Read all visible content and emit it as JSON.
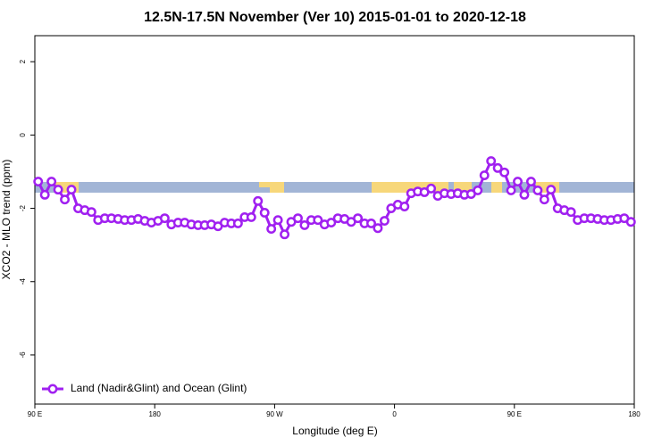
{
  "chart_data": {
    "type": "line",
    "title": "12.5N-17.5N November (Ver 10)   2015-01-01 to 2020-12-18",
    "x_label": "Longitude (deg E)",
    "y_label": "XCO2 - MLO trend (ppm)",
    "x": [
      92.5,
      97.5,
      102.5,
      107.5,
      112.5,
      117.5,
      122.5,
      127.5,
      132.5,
      137.5,
      142.5,
      147.5,
      152.5,
      157.5,
      162.5,
      167.5,
      172.5,
      177.5,
      182.5,
      187.5,
      192.5,
      197.5,
      202.5,
      207.5,
      212.5,
      217.5,
      222.5,
      227.5,
      232.5,
      237.5,
      242.5,
      247.5,
      252.5,
      257.5,
      262.5,
      267.5,
      272.5,
      277.5,
      282.5,
      287.5,
      292.5,
      297.5,
      302.5,
      307.5,
      312.5,
      317.5,
      322.5,
      327.5,
      332.5,
      337.5,
      342.5,
      347.5,
      352.5,
      357.5,
      362.5,
      367.5,
      372.5,
      377.5,
      382.5,
      387.5,
      392.5,
      397.5,
      402.5,
      407.5,
      412.5,
      417.5,
      422.5,
      427.5,
      432.5,
      437.5,
      442.5,
      447.5,
      452.5,
      457.5,
      462.5,
      467.5,
      472.5,
      477.5,
      482.5,
      487.5,
      492.5,
      497.5,
      502.5,
      507.5,
      512.5,
      517.5,
      522.5,
      527.5,
      532.5,
      537.5
    ],
    "series": [
      {
        "name": "Land (Nadir&Glint) and Ocean (Glint)",
        "color": "#a020f0",
        "values": [
          -1.27,
          -1.63,
          -1.27,
          -1.49,
          -1.76,
          -1.49,
          -2.0,
          -2.05,
          -2.1,
          -2.32,
          -2.27,
          -2.27,
          -2.29,
          -2.32,
          -2.32,
          -2.29,
          -2.34,
          -2.39,
          -2.34,
          -2.27,
          -2.44,
          -2.39,
          -2.39,
          -2.44,
          -2.46,
          -2.46,
          -2.44,
          -2.49,
          -2.39,
          -2.41,
          -2.41,
          -2.24,
          -2.24,
          -1.8,
          -2.12,
          -2.56,
          -2.32,
          -2.71,
          -2.37,
          -2.27,
          -2.46,
          -2.32,
          -2.32,
          -2.44,
          -2.39,
          -2.27,
          -2.29,
          -2.37,
          -2.27,
          -2.41,
          -2.41,
          -2.54,
          -2.34,
          -2.0,
          -1.9,
          -1.95,
          -1.59,
          -1.54,
          -1.56,
          -1.46,
          -1.66,
          -1.59,
          -1.61,
          -1.59,
          -1.63,
          -1.61,
          -1.51,
          -1.1,
          -0.71,
          -0.9,
          -1.02,
          -1.51,
          -1.27,
          -1.63,
          -1.27,
          -1.51,
          -1.76,
          -1.49,
          -2.0,
          -2.05,
          -2.1,
          -2.32,
          -2.27,
          -2.27,
          -2.29,
          -2.32,
          -2.32,
          -2.29,
          -2.27,
          -2.37
        ]
      }
    ],
    "xlim": [
      90,
      540
    ],
    "xticks": [
      {
        "value": 90,
        "label": "90 E"
      },
      180,
      {
        "value": 270,
        "label": "90 W"
      },
      {
        "value": 360,
        "label": "0"
      },
      {
        "value": 450,
        "label": "90 E"
      },
      {
        "value": 540,
        "label": "180"
      }
    ],
    "ylim": [
      -7.34,
      2.71
    ],
    "yticks": [
      2,
      0,
      -2,
      -4,
      -6
    ],
    "legend": "lower left"
  }
}
